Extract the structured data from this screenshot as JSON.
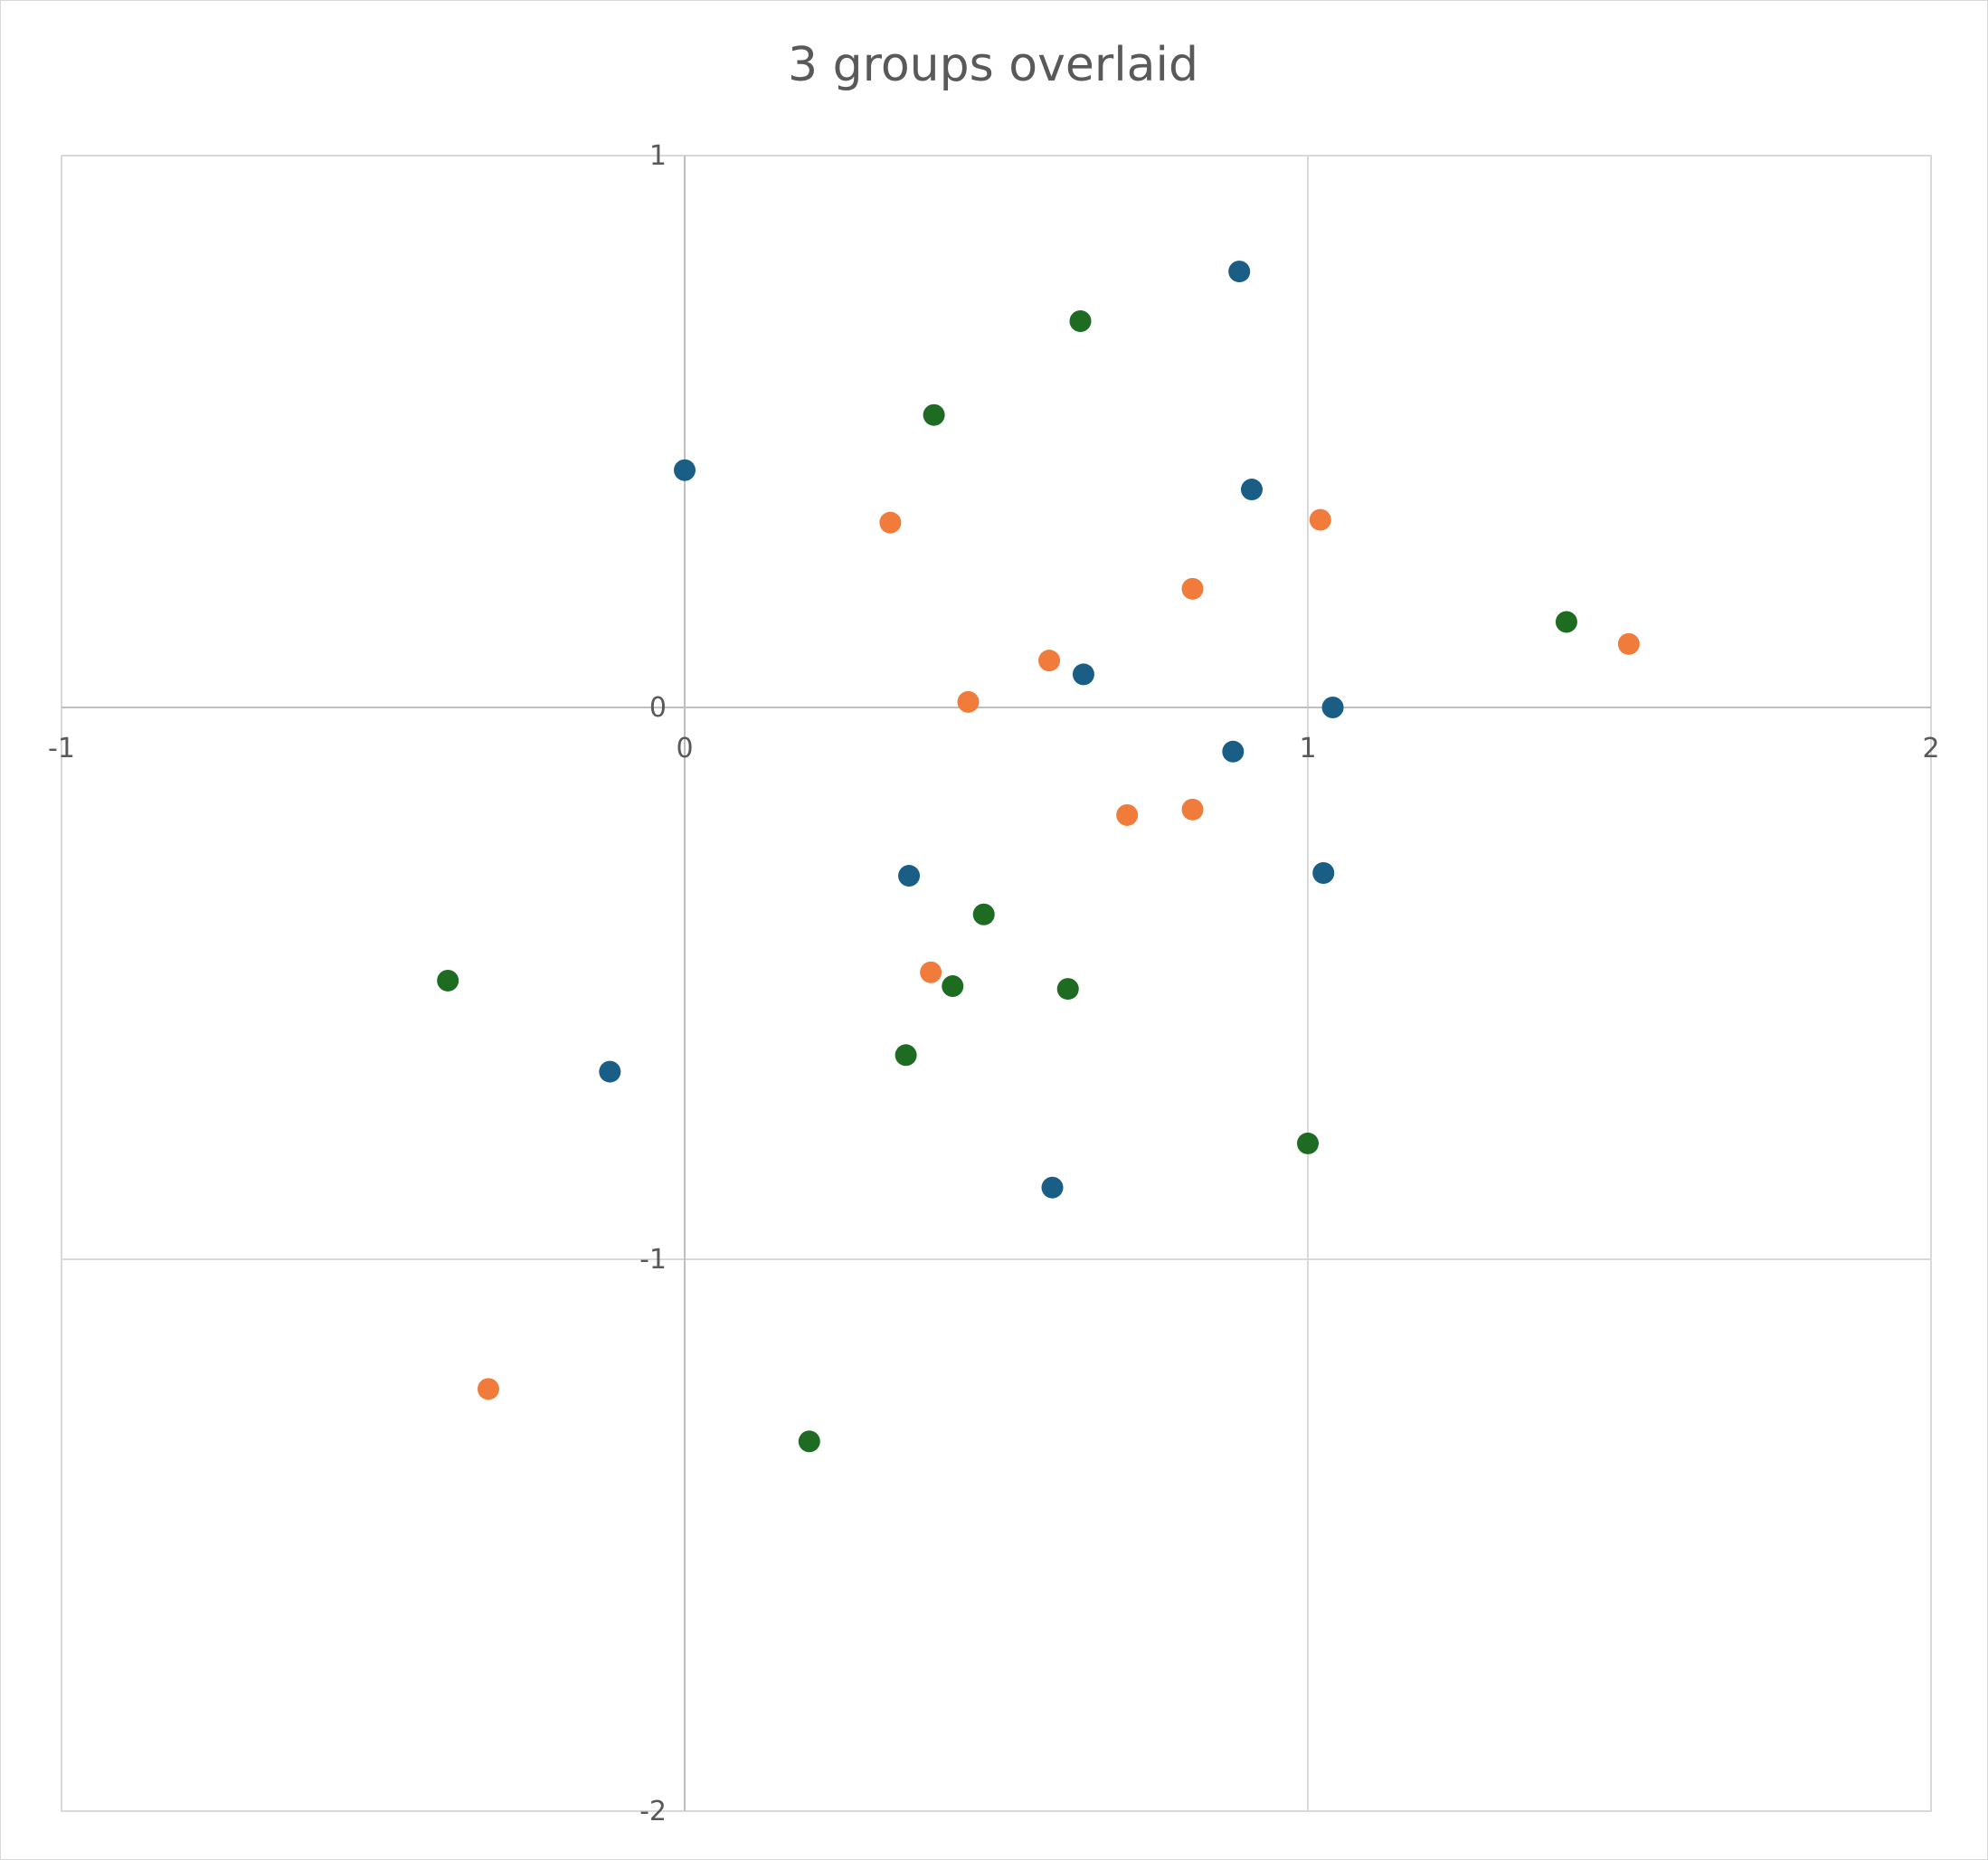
{
  "chart_data": {
    "type": "scatter",
    "title": "3 groups overlaid",
    "xlabel": "",
    "ylabel": "",
    "xlim": [
      -1,
      2
    ],
    "ylim": [
      -2,
      1
    ],
    "x_ticks": [
      "-1",
      "0",
      "1",
      "2"
    ],
    "y_ticks": [
      "1",
      "0",
      "-1",
      "-2"
    ],
    "grid": true,
    "legend": "none",
    "series": [
      {
        "color": "#1a5e85",
        "points": [
          {
            "x": 0.89,
            "y": 0.79
          },
          {
            "x": 0.0,
            "y": 0.43
          },
          {
            "x": 0.91,
            "y": 0.395
          },
          {
            "x": 0.64,
            "y": 0.06
          },
          {
            "x": 1.04,
            "y": 0.0
          },
          {
            "x": 0.88,
            "y": -0.08
          },
          {
            "x": 0.36,
            "y": -0.305
          },
          {
            "x": 1.025,
            "y": -0.3
          },
          {
            "x": -0.12,
            "y": -0.66
          },
          {
            "x": 0.59,
            "y": -0.87
          }
        ]
      },
      {
        "color": "#f07b3a",
        "points": [
          {
            "x": 0.33,
            "y": 0.335
          },
          {
            "x": 1.02,
            "y": 0.34
          },
          {
            "x": 0.815,
            "y": 0.215
          },
          {
            "x": 1.515,
            "y": 0.115
          },
          {
            "x": 0.585,
            "y": 0.085
          },
          {
            "x": 0.455,
            "y": 0.01
          },
          {
            "x": 0.71,
            "y": -0.195
          },
          {
            "x": 0.815,
            "y": -0.185
          },
          {
            "x": 0.395,
            "y": -0.48
          },
          {
            "x": -0.315,
            "y": -1.235
          }
        ]
      },
      {
        "color": "#1e6b22",
        "points": [
          {
            "x": 0.635,
            "y": 0.7
          },
          {
            "x": 0.4,
            "y": 0.53
          },
          {
            "x": 1.415,
            "y": 0.155
          },
          {
            "x": 0.48,
            "y": -0.375
          },
          {
            "x": -0.38,
            "y": -0.495
          },
          {
            "x": 0.43,
            "y": -0.505
          },
          {
            "x": 0.615,
            "y": -0.51
          },
          {
            "x": 0.355,
            "y": -0.63
          },
          {
            "x": 1.0,
            "y": -0.79
          },
          {
            "x": 0.2,
            "y": -1.33
          }
        ]
      }
    ]
  }
}
